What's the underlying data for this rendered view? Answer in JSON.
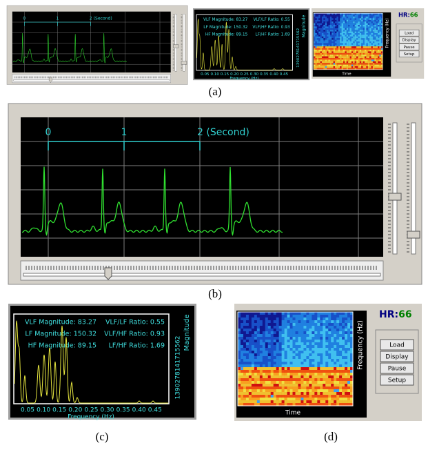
{
  "ecg": {
    "time_labels": [
      "0",
      "1",
      "2 (Second)"
    ]
  },
  "spectrum": {
    "stats_left": [
      "VLF Magnitude: 83.27",
      "LF Magnitude: 150.32",
      "HF Magnitude: 89.15"
    ],
    "stats_right": [
      "VLF/LF Ratio: 0.55",
      "VLF/HF Ratio: 0.93",
      "LF/HF Ratio: 1.69"
    ],
    "x_ticks": [
      "0.05",
      "0.10",
      "0.15",
      "0.20",
      "0.25",
      "0.30",
      "0.35",
      "0.40",
      "0.45"
    ],
    "x_label": "Frequency (Hz)",
    "y_ticks": [
      "1390",
      "2781",
      "4171",
      "5562"
    ],
    "y_label": "Magnitude"
  },
  "spectrogram": {
    "x_label": "Time",
    "y_label": "Frequency (Hz)"
  },
  "controls": {
    "hr_label": "HR:",
    "hr_value": "66",
    "buttons": [
      "Load",
      "Display",
      "Pause",
      "Setup"
    ]
  },
  "captions": [
    "(a)",
    "(b)",
    "(c)",
    "(d)"
  ]
}
